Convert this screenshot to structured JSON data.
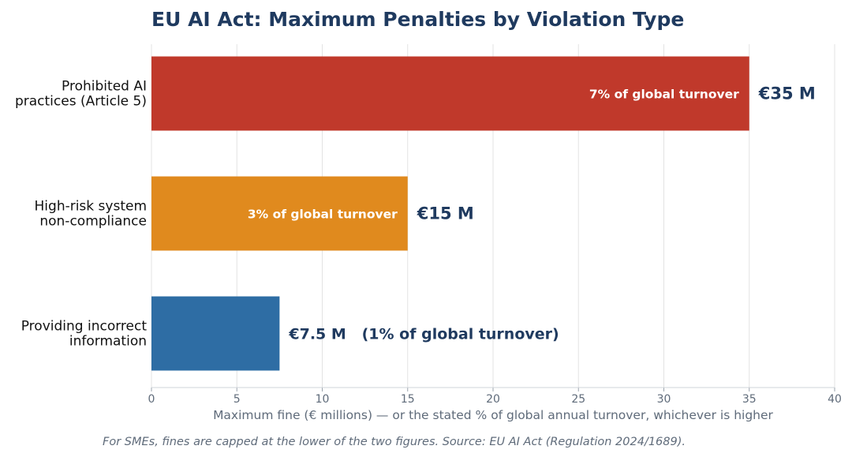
{
  "chart_data": {
    "type": "bar",
    "orientation": "horizontal",
    "title": "EU AI Act: Maximum Penalties by Violation Type",
    "xlabel": "Maximum fine (€ millions)  —  or the stated % of global annual turnover, whichever is higher",
    "footnote": "For SMEs, fines are capped at the lower of the two figures.  Source: EU AI Act (Regulation 2024/1689).",
    "xlim": [
      0,
      40
    ],
    "xticks": [
      "0",
      "5",
      "10",
      "15",
      "20",
      "25",
      "30",
      "35",
      "40"
    ],
    "grid": true,
    "bars": [
      {
        "category_lines": [
          "Prohibited AI",
          "practices (Article 5)"
        ],
        "value": 35,
        "value_label": "€35 M",
        "inner_label": "7% of global turnover",
        "color": "#c0392b"
      },
      {
        "category_lines": [
          "High-risk system",
          "non-compliance"
        ],
        "value": 15,
        "value_label": "€15 M",
        "inner_label": "3% of global turnover",
        "color": "#e08a1e"
      },
      {
        "category_lines": [
          "Providing incorrect",
          "information"
        ],
        "value": 7.5,
        "value_label": "€7.5 M   (1% of global turnover)",
        "inner_label": "",
        "color": "#2e6da4"
      }
    ]
  }
}
